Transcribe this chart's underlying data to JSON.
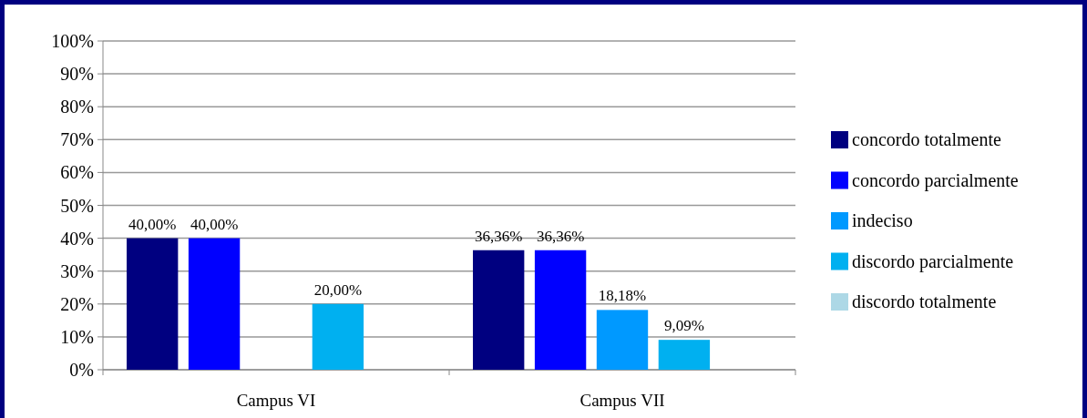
{
  "chart_data": {
    "type": "bar",
    "categories": [
      "Campus VI",
      "Campus VII"
    ],
    "series": [
      {
        "name": "concordo totalmente",
        "color": "#000080",
        "values": [
          40,
          36.36
        ],
        "value_labels": [
          "40,00%",
          "36,36%"
        ]
      },
      {
        "name": "concordo parcialmente",
        "color": "#0000ff",
        "values": [
          40,
          36.36
        ],
        "value_labels": [
          "40,00%",
          "36,36%"
        ]
      },
      {
        "name": "indeciso",
        "color": "#0099ff",
        "values": [
          0,
          18.18
        ],
        "value_labels": [
          null,
          "18,18%"
        ]
      },
      {
        "name": "discordo parcialmente",
        "color": "#00b0f0",
        "values": [
          20,
          9.09
        ],
        "value_labels": [
          "20,00%",
          "9,09%"
        ]
      },
      {
        "name": "discordo totalmente",
        "color": "#add8e6",
        "values": [
          0,
          0
        ],
        "value_labels": [
          null,
          null
        ]
      }
    ],
    "ylim": [
      0,
      100
    ],
    "yticks": [
      {
        "value": 0,
        "label": "0%"
      },
      {
        "value": 10,
        "label": "10%"
      },
      {
        "value": 20,
        "label": "20%"
      },
      {
        "value": 30,
        "label": "30%"
      },
      {
        "value": 40,
        "label": "40%"
      },
      {
        "value": 50,
        "label": "50%"
      },
      {
        "value": 60,
        "label": "60%"
      },
      {
        "value": 70,
        "label": "70%"
      },
      {
        "value": 80,
        "label": "80%"
      },
      {
        "value": 90,
        "label": "90%"
      },
      {
        "value": 100,
        "label": "100%"
      }
    ],
    "grid": "y",
    "legend": "right"
  }
}
